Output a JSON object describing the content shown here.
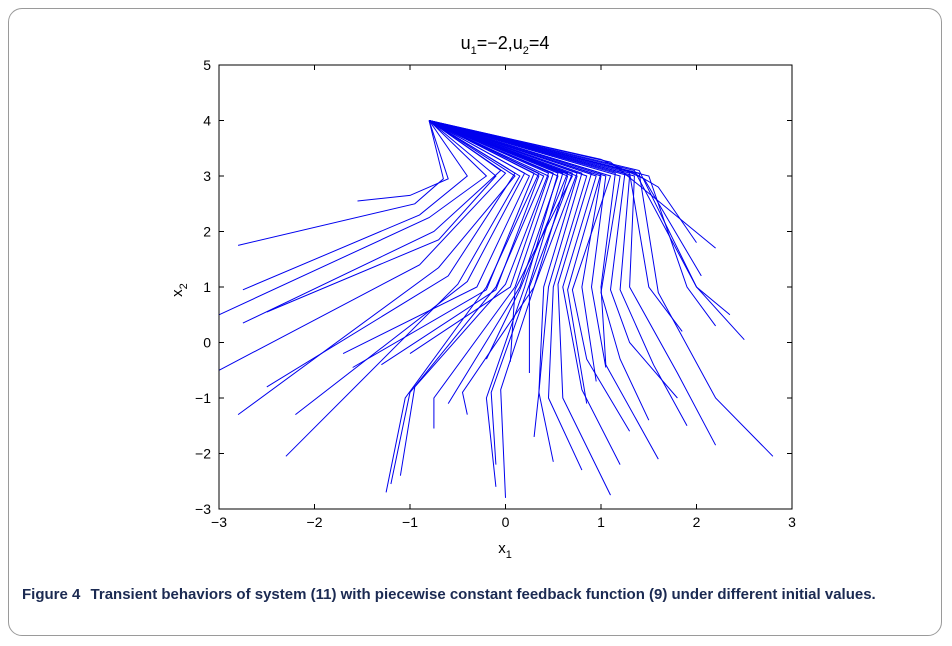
{
  "figure": {
    "label": "Figure 4",
    "caption_text": "Transient behaviors of system (11) with piecewise constant feedback function (9) under different initial values."
  },
  "chart_data": {
    "type": "line",
    "title": {
      "u1_label": "u",
      "u1_sub": "1",
      "u1_value": "=−2,",
      "u2_label": "u",
      "u2_sub": "2",
      "u2_value": "=4"
    },
    "xlabel": {
      "base": "x",
      "sub": "1"
    },
    "ylabel": {
      "base": "x",
      "sub": "2"
    },
    "xlim": [
      -3,
      3
    ],
    "ylim": [
      -3,
      5
    ],
    "xticks": [
      "−3",
      "−2",
      "−1",
      "0",
      "1",
      "2",
      "3"
    ],
    "yticks": [
      "−3",
      "−2",
      "−1",
      "0",
      "1",
      "2",
      "3",
      "4",
      "5"
    ],
    "xtick_values": [
      -3,
      -2,
      -1,
      0,
      1,
      2,
      3
    ],
    "ytick_values": [
      -3,
      -2,
      -1,
      0,
      1,
      2,
      3,
      4,
      5
    ],
    "grid": false,
    "line_color": "#0000ee",
    "target_point": [
      -0.8,
      4.0
    ],
    "series": [
      {
        "values": [
          [
            -2.8,
            1.75
          ],
          [
            -0.95,
            2.5
          ],
          [
            -0.65,
            2.95
          ],
          [
            -0.8,
            4.0
          ]
        ]
      },
      {
        "values": [
          [
            -1.55,
            2.55
          ],
          [
            -1.0,
            2.65
          ],
          [
            -0.6,
            2.95
          ],
          [
            -0.8,
            4.0
          ]
        ]
      },
      {
        "values": [
          [
            -2.75,
            0.95
          ],
          [
            -0.9,
            2.3
          ],
          [
            -0.4,
            3.0
          ],
          [
            -0.8,
            4.0
          ]
        ]
      },
      {
        "values": [
          [
            -3.0,
            0.5
          ],
          [
            -0.8,
            2.25
          ],
          [
            -0.2,
            3.0
          ],
          [
            -0.8,
            4.0
          ]
        ]
      },
      {
        "values": [
          [
            -2.75,
            0.35
          ],
          [
            -0.75,
            2.0
          ],
          [
            -0.05,
            3.1
          ],
          [
            -0.8,
            4.0
          ]
        ]
      },
      {
        "values": [
          [
            -2.5,
            0.55
          ],
          [
            -0.7,
            1.85
          ],
          [
            -0.1,
            3.0
          ],
          [
            -0.8,
            4.0
          ]
        ]
      },
      {
        "values": [
          [
            -3.0,
            -0.5
          ],
          [
            -0.9,
            1.4
          ],
          [
            0.0,
            3.05
          ],
          [
            -0.8,
            4.0
          ]
        ]
      },
      {
        "values": [
          [
            -2.8,
            -1.3
          ],
          [
            -0.7,
            1.35
          ],
          [
            0.1,
            3.0
          ],
          [
            -0.8,
            4.0
          ]
        ]
      },
      {
        "values": [
          [
            -2.5,
            -0.8
          ],
          [
            -0.6,
            1.2
          ],
          [
            0.1,
            3.05
          ],
          [
            -0.8,
            4.0
          ]
        ]
      },
      {
        "values": [
          [
            -2.3,
            -2.05
          ],
          [
            -0.5,
            1.05
          ],
          [
            0.15,
            3.0
          ],
          [
            -0.8,
            4.0
          ]
        ]
      },
      {
        "values": [
          [
            -2.2,
            -1.3
          ],
          [
            -0.4,
            1.1
          ],
          [
            0.2,
            3.05
          ],
          [
            -0.8,
            4.0
          ]
        ]
      },
      {
        "values": [
          [
            -1.7,
            -0.2
          ],
          [
            -0.3,
            1.0
          ],
          [
            0.25,
            3.0
          ],
          [
            -0.8,
            4.0
          ]
        ]
      },
      {
        "values": [
          [
            -1.6,
            -0.45
          ],
          [
            -0.2,
            0.95
          ],
          [
            0.3,
            3.05
          ],
          [
            -0.8,
            4.0
          ]
        ]
      },
      {
        "values": [
          [
            -1.3,
            -0.4
          ],
          [
            -0.1,
            0.95
          ],
          [
            0.35,
            3.0
          ],
          [
            -0.8,
            4.0
          ]
        ]
      },
      {
        "values": [
          [
            -1.25,
            -2.7
          ],
          [
            -1.05,
            -1.0
          ],
          [
            -0.2,
            1.0
          ],
          [
            0.35,
            3.05
          ],
          [
            -0.8,
            4.0
          ]
        ]
      },
      {
        "values": [
          [
            -1.2,
            -2.55
          ],
          [
            -1.0,
            -0.9
          ],
          [
            -0.1,
            1.0
          ],
          [
            0.4,
            3.0
          ],
          [
            -0.8,
            4.0
          ]
        ]
      },
      {
        "values": [
          [
            -1.1,
            -2.4
          ],
          [
            -0.95,
            -0.8
          ],
          [
            0.0,
            1.05
          ],
          [
            0.45,
            3.05
          ],
          [
            -0.8,
            4.0
          ]
        ]
      },
      {
        "values": [
          [
            -1.0,
            -0.2
          ],
          [
            0.05,
            1.0
          ],
          [
            0.45,
            3.0
          ],
          [
            -0.8,
            4.0
          ]
        ]
      },
      {
        "values": [
          [
            -0.75,
            -1.55
          ],
          [
            -0.75,
            -1.0
          ],
          [
            0.1,
            1.0
          ],
          [
            0.5,
            3.05
          ],
          [
            -0.8,
            4.0
          ]
        ]
      },
      {
        "values": [
          [
            -0.6,
            -1.1
          ],
          [
            0.15,
            1.0
          ],
          [
            0.55,
            3.0
          ],
          [
            -0.8,
            4.0
          ]
        ]
      },
      {
        "values": [
          [
            -0.1,
            -2.6
          ],
          [
            -0.2,
            -1.0
          ],
          [
            0.2,
            1.0
          ],
          [
            0.55,
            3.05
          ],
          [
            -0.8,
            4.0
          ]
        ]
      },
      {
        "values": [
          [
            -0.1,
            -2.2
          ],
          [
            -0.15,
            -0.9
          ],
          [
            0.25,
            1.05
          ],
          [
            0.6,
            3.05
          ],
          [
            -0.8,
            4.0
          ]
        ]
      },
      {
        "values": [
          [
            -0.4,
            -1.3
          ],
          [
            -0.45,
            -0.9
          ],
          [
            0.3,
            1.0
          ],
          [
            0.65,
            3.0
          ],
          [
            -0.8,
            4.0
          ]
        ]
      },
      {
        "values": [
          [
            -0.2,
            -0.3
          ],
          [
            0.15,
            0.95
          ],
          [
            0.65,
            3.05
          ],
          [
            -0.8,
            4.0
          ]
        ]
      },
      {
        "values": [
          [
            0.05,
            -0.35
          ],
          [
            0.1,
            0.95
          ],
          [
            0.7,
            3.0
          ],
          [
            -0.8,
            4.0
          ]
        ]
      },
      {
        "values": [
          [
            0.25,
            -0.55
          ],
          [
            0.25,
            1.0
          ],
          [
            0.7,
            3.05
          ],
          [
            -0.8,
            4.0
          ]
        ]
      },
      {
        "values": [
          [
            0.0,
            -2.8
          ],
          [
            -0.05,
            -0.85
          ],
          [
            0.3,
            1.0
          ],
          [
            0.75,
            3.05
          ],
          [
            -0.8,
            4.0
          ]
        ]
      },
      {
        "values": [
          [
            0.3,
            -1.7
          ],
          [
            0.35,
            -0.9
          ],
          [
            0.4,
            1.0
          ],
          [
            0.75,
            3.0
          ],
          [
            -0.8,
            4.0
          ]
        ]
      },
      {
        "values": [
          [
            0.5,
            -2.15
          ],
          [
            0.35,
            -0.9
          ],
          [
            0.45,
            1.0
          ],
          [
            0.8,
            3.05
          ],
          [
            -0.8,
            4.0
          ]
        ]
      },
      {
        "values": [
          [
            0.8,
            -2.3
          ],
          [
            0.45,
            -1.0
          ],
          [
            0.5,
            1.0
          ],
          [
            0.85,
            3.0
          ],
          [
            -0.8,
            4.0
          ]
        ]
      },
      {
        "values": [
          [
            1.1,
            -2.75
          ],
          [
            0.6,
            -1.0
          ],
          [
            0.55,
            1.05
          ],
          [
            0.9,
            3.05
          ],
          [
            -0.8,
            4.0
          ]
        ]
      },
      {
        "values": [
          [
            1.2,
            -2.2
          ],
          [
            0.8,
            -0.85
          ],
          [
            0.6,
            1.0
          ],
          [
            0.95,
            3.0
          ],
          [
            -0.8,
            4.0
          ]
        ]
      },
      {
        "values": [
          [
            0.85,
            -1.1
          ],
          [
            0.65,
            0.95
          ],
          [
            1.0,
            3.05
          ],
          [
            -0.8,
            4.0
          ]
        ]
      },
      {
        "values": [
          [
            0.95,
            -0.7
          ],
          [
            0.8,
            1.0
          ],
          [
            1.0,
            3.0
          ],
          [
            -0.8,
            4.0
          ]
        ]
      },
      {
        "values": [
          [
            1.05,
            -0.45
          ],
          [
            0.9,
            1.0
          ],
          [
            1.05,
            3.0
          ],
          [
            -0.8,
            4.0
          ]
        ]
      },
      {
        "values": [
          [
            1.3,
            -1.6
          ],
          [
            0.85,
            -0.3
          ],
          [
            0.7,
            0.95
          ],
          [
            1.1,
            3.0
          ],
          [
            -0.8,
            4.0
          ]
        ]
      },
      {
        "values": [
          [
            1.6,
            -2.1
          ],
          [
            1.05,
            -0.4
          ],
          [
            1.0,
            1.0
          ],
          [
            1.15,
            3.05
          ],
          [
            -0.8,
            4.0
          ]
        ]
      },
      {
        "values": [
          [
            1.5,
            -1.4
          ],
          [
            1.2,
            -0.3
          ],
          [
            1.0,
            0.9
          ],
          [
            1.2,
            3.0
          ],
          [
            -0.8,
            4.0
          ]
        ]
      },
      {
        "values": [
          [
            1.8,
            -1.0
          ],
          [
            1.3,
            0.0
          ],
          [
            1.1,
            0.95
          ],
          [
            1.25,
            3.05
          ],
          [
            -0.8,
            4.0
          ]
        ]
      },
      {
        "values": [
          [
            1.9,
            -1.5
          ],
          [
            1.55,
            -0.4
          ],
          [
            1.2,
            0.95
          ],
          [
            1.3,
            3.0
          ],
          [
            -0.8,
            4.0
          ]
        ]
      },
      {
        "values": [
          [
            2.2,
            -1.85
          ],
          [
            1.8,
            -0.55
          ],
          [
            1.3,
            1.0
          ],
          [
            1.35,
            3.0
          ],
          [
            -0.8,
            4.0
          ]
        ]
      },
      {
        "values": [
          [
            1.85,
            0.2
          ],
          [
            1.5,
            1.0
          ],
          [
            1.3,
            3.05
          ],
          [
            -0.8,
            4.0
          ]
        ]
      },
      {
        "values": [
          [
            2.8,
            -2.05
          ],
          [
            2.2,
            -1.0
          ],
          [
            1.6,
            0.9
          ],
          [
            1.4,
            3.05
          ],
          [
            -0.8,
            4.0
          ]
        ]
      },
      {
        "values": [
          [
            2.5,
            0.05
          ],
          [
            2.0,
            1.0
          ],
          [
            1.4,
            3.1
          ],
          [
            -0.8,
            4.0
          ]
        ]
      },
      {
        "values": [
          [
            2.2,
            0.3
          ],
          [
            1.9,
            1.0
          ],
          [
            1.5,
            3.0
          ],
          [
            -0.8,
            4.0
          ]
        ]
      },
      {
        "values": [
          [
            2.35,
            0.5
          ],
          [
            2.0,
            1.0
          ],
          [
            1.35,
            3.1
          ],
          [
            -0.8,
            4.0
          ]
        ]
      },
      {
        "values": [
          [
            2.0,
            1.8
          ],
          [
            1.6,
            2.8
          ],
          [
            1.35,
            3.05
          ],
          [
            -0.8,
            4.0
          ]
        ]
      },
      {
        "values": [
          [
            2.2,
            1.7
          ],
          [
            1.6,
            2.55
          ],
          [
            1.1,
            3.25
          ],
          [
            -0.8,
            4.0
          ]
        ]
      },
      {
        "values": [
          [
            2.05,
            1.2
          ],
          [
            1.45,
            2.95
          ],
          [
            1.0,
            3.3
          ],
          [
            -0.8,
            4.0
          ]
        ]
      }
    ]
  }
}
